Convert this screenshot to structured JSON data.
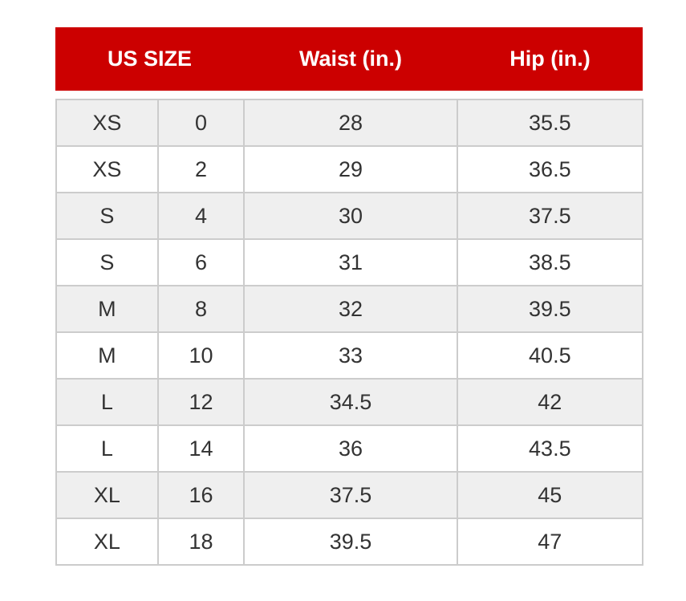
{
  "colors": {
    "header_bg": "#cc0000",
    "header_text": "#ffffff",
    "row_alt": "#efefef",
    "border": "#cccccc"
  },
  "header": {
    "size": "US SIZE",
    "waist": "Waist (in.)",
    "hip": "Hip (in.)"
  },
  "rows": [
    [
      "XS",
      "0",
      "28",
      "35.5"
    ],
    [
      "XS",
      "2",
      "29",
      "36.5"
    ],
    [
      "S",
      "4",
      "30",
      "37.5"
    ],
    [
      "S",
      "6",
      "31",
      "38.5"
    ],
    [
      "M",
      "8",
      "32",
      "39.5"
    ],
    [
      "M",
      "10",
      "33",
      "40.5"
    ],
    [
      "L",
      "12",
      "34.5",
      "42"
    ],
    [
      "L",
      "14",
      "36",
      "43.5"
    ],
    [
      "XL",
      "16",
      "37.5",
      "45"
    ],
    [
      "XL",
      "18",
      "39.5",
      "47"
    ]
  ]
}
